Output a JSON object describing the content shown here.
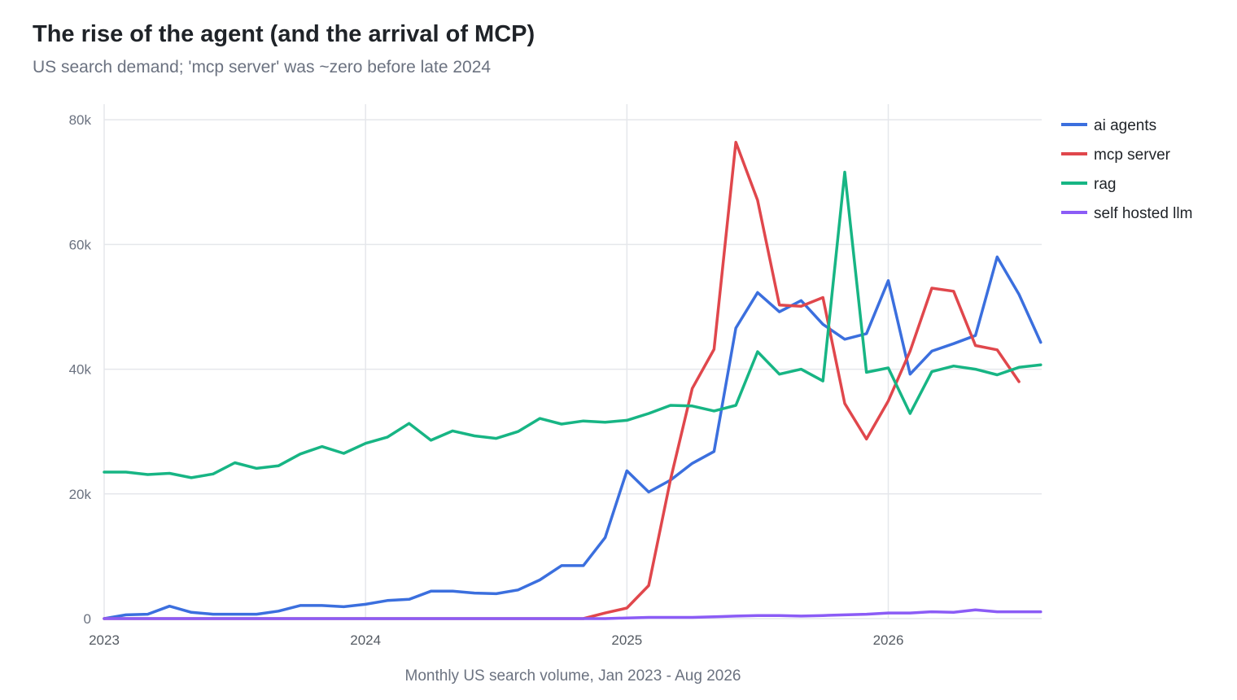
{
  "title": "The rise of the agent (and the arrival of MCP)",
  "subtitle": "US search demand; 'mcp server' was ~zero before late 2024",
  "chart_data": {
    "type": "line",
    "xlabel": "Monthly US search volume, Jan 2023 - Aug 2026",
    "ylabel": "",
    "x_ticks": [
      "2023",
      "2024",
      "2025",
      "2026"
    ],
    "y_ticks": [
      "0",
      "20k",
      "40k",
      "60k",
      "80k"
    ],
    "xlim": [
      "2023-01",
      "2026-08"
    ],
    "ylim": [
      0,
      82500
    ],
    "grid": true,
    "legend": "right",
    "x": [
      "2023-01",
      "2023-02",
      "2023-03",
      "2023-04",
      "2023-05",
      "2023-06",
      "2023-07",
      "2023-08",
      "2023-09",
      "2023-10",
      "2023-11",
      "2023-12",
      "2024-01",
      "2024-02",
      "2024-03",
      "2024-04",
      "2024-05",
      "2024-06",
      "2024-07",
      "2024-08",
      "2024-09",
      "2024-10",
      "2024-11",
      "2024-12",
      "2025-01",
      "2025-02",
      "2025-03",
      "2025-04",
      "2025-05",
      "2025-06",
      "2025-07",
      "2025-08",
      "2025-09",
      "2025-10",
      "2025-11",
      "2025-12",
      "2026-01",
      "2026-02",
      "2026-03",
      "2026-04",
      "2026-05",
      "2026-06",
      "2026-07",
      "2026-08"
    ],
    "series": [
      {
        "name": "ai agents",
        "color": "#3b6fde",
        "values": [
          0,
          600,
          700,
          2000,
          1000,
          700,
          700,
          700,
          1200,
          2100,
          2100,
          1900,
          2300,
          2900,
          3100,
          4400,
          4400,
          4100,
          4000,
          4600,
          6200,
          8500,
          8500,
          13000,
          23700,
          20300,
          22200,
          24900,
          26800,
          46600,
          52300,
          49200,
          51000,
          47200,
          44800,
          45700,
          54200,
          39200,
          42900,
          44100,
          45400,
          58000,
          52000,
          44300
        ]
      },
      {
        "name": "mcp server",
        "color": "#e0474c",
        "values": [
          0,
          0,
          0,
          0,
          0,
          0,
          0,
          0,
          0,
          0,
          0,
          0,
          0,
          0,
          0,
          0,
          0,
          0,
          0,
          0,
          0,
          0,
          0,
          900,
          1700,
          5300,
          22300,
          36900,
          43200,
          76400,
          67100,
          50300,
          50100,
          51500,
          34500,
          28800,
          34900,
          42900,
          53000,
          52500,
          43800,
          43100,
          38000,
          null
        ]
      },
      {
        "name": "rag",
        "color": "#17b584",
        "values": [
          23500,
          23500,
          23100,
          23300,
          22600,
          23200,
          25000,
          24100,
          24500,
          26400,
          27600,
          26500,
          28100,
          29100,
          31300,
          28600,
          30100,
          29300,
          28900,
          30000,
          32100,
          31200,
          31700,
          31500,
          31800,
          32900,
          34200,
          34100,
          33300,
          34200,
          42800,
          39200,
          40000,
          38100,
          71600,
          39500,
          40200,
          32900,
          39600,
          40500,
          40000,
          39100,
          40300,
          40700
        ]
      },
      {
        "name": "self hosted llm",
        "color": "#8b5cf6",
        "values": [
          0,
          0,
          0,
          0,
          0,
          0,
          0,
          0,
          0,
          0,
          0,
          0,
          0,
          0,
          0,
          0,
          0,
          0,
          0,
          0,
          0,
          0,
          0,
          0,
          100,
          200,
          200,
          200,
          300,
          400,
          500,
          500,
          400,
          500,
          600,
          700,
          900,
          900,
          1100,
          1000,
          1400,
          1100,
          1100,
          1100
        ]
      }
    ]
  }
}
